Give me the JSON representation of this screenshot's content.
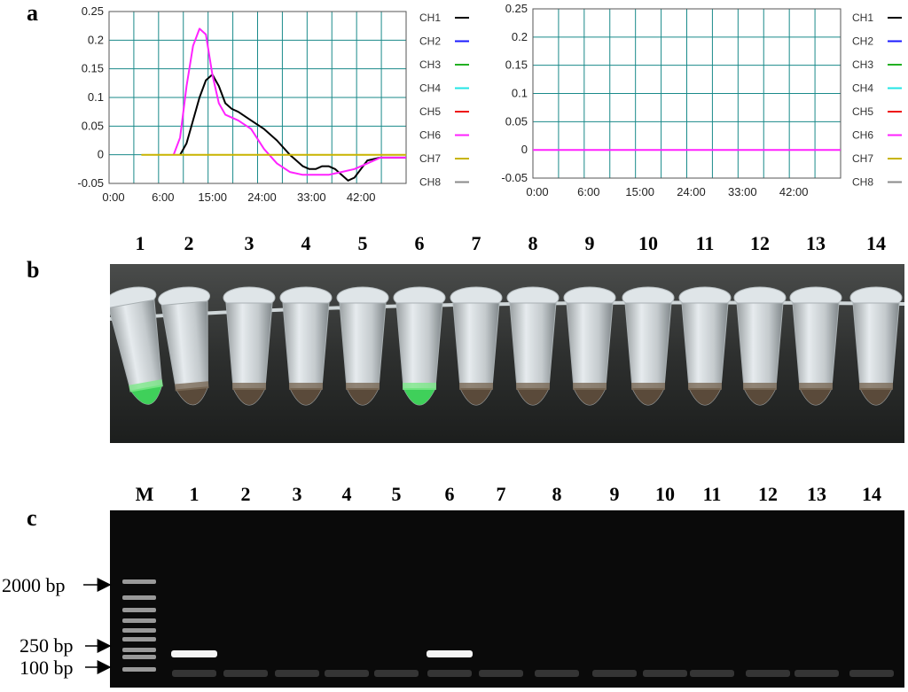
{
  "panels": {
    "a": "a",
    "b": "b",
    "c": "c"
  },
  "colors": {
    "CH1": "#000000",
    "CH2": "#1a1aff",
    "CH3": "#22b022",
    "CH4": "#22e5e5",
    "CH5": "#ee1111",
    "CH6": "#ff22ff",
    "CH7": "#c8b400",
    "CH8": "#8a8a8a",
    "grid": "#1a8a8a"
  },
  "legend": [
    "CH1",
    "CH2",
    "CH3",
    "CH4",
    "CH5",
    "CH6",
    "CH7",
    "CH8"
  ],
  "chart_data": [
    {
      "type": "line",
      "x_ticks": [
        "0:00",
        "6:00",
        "15:00",
        "24:00",
        "33:00",
        "42:00"
      ],
      "y_ticks": [
        "0.25",
        "0.2",
        "0.15",
        "0.1",
        "0.05",
        "0",
        "-0.05"
      ],
      "ylim": [
        -0.05,
        0.25
      ],
      "xlim": [
        0,
        46
      ],
      "grid": true,
      "legend_position": "right",
      "series": [
        {
          "name": "CH1",
          "x": [
            11,
            12,
            13,
            14,
            15,
            16,
            17,
            18,
            19,
            20,
            22,
            24,
            26,
            28,
            29,
            30,
            31,
            32,
            33,
            34,
            35,
            36,
            37,
            38,
            39,
            40,
            42,
            44,
            46
          ],
          "y": [
            0,
            0.02,
            0.06,
            0.1,
            0.13,
            0.14,
            0.12,
            0.09,
            0.08,
            0.075,
            0.06,
            0.045,
            0.025,
            0,
            -0.01,
            -0.02,
            -0.025,
            -0.025,
            -0.02,
            -0.02,
            -0.025,
            -0.035,
            -0.045,
            -0.04,
            -0.025,
            -0.01,
            -0.005,
            -0.005,
            -0.005
          ]
        },
        {
          "name": "CH6",
          "x": [
            10,
            11,
            12,
            13,
            14,
            15,
            16,
            17,
            18,
            20,
            22,
            24,
            26,
            28,
            30,
            32,
            34,
            36,
            38,
            40,
            42,
            44,
            46
          ],
          "y": [
            0,
            0.03,
            0.12,
            0.19,
            0.22,
            0.21,
            0.14,
            0.09,
            0.07,
            0.06,
            0.045,
            0.01,
            -0.015,
            -0.03,
            -0.035,
            -0.035,
            -0.035,
            -0.03,
            -0.025,
            -0.015,
            -0.005,
            -0.005,
            -0.005
          ]
        },
        {
          "name": "CH7",
          "x": [
            5,
            46
          ],
          "y": [
            0,
            0
          ]
        }
      ]
    },
    {
      "type": "line",
      "x_ticks": [
        "0:00",
        "6:00",
        "15:00",
        "24:00",
        "33:00",
        "42:00"
      ],
      "y_ticks": [
        "0.25",
        "0.2",
        "0.15",
        "0.1",
        "0.05",
        "0",
        "-0.05"
      ],
      "ylim": [
        -0.05,
        0.25
      ],
      "xlim": [
        0,
        46
      ],
      "grid": true,
      "legend_position": "right",
      "series": [
        {
          "name": "CH6",
          "x": [
            0,
            46
          ],
          "y": [
            0,
            0
          ]
        }
      ]
    }
  ],
  "tubes": {
    "labels": [
      "1",
      "2",
      "3",
      "4",
      "5",
      "6",
      "7",
      "8",
      "9",
      "10",
      "11",
      "12",
      "13",
      "14"
    ],
    "green": [
      1,
      6
    ]
  },
  "gel": {
    "labels": [
      "M",
      "1",
      "2",
      "3",
      "4",
      "5",
      "6",
      "7",
      "8",
      "9",
      "10",
      "11",
      "12",
      "13",
      "14"
    ],
    "markers": [
      "2000 bp",
      "250 bp",
      "100 bp"
    ],
    "band_lanes": [
      1,
      6
    ]
  }
}
